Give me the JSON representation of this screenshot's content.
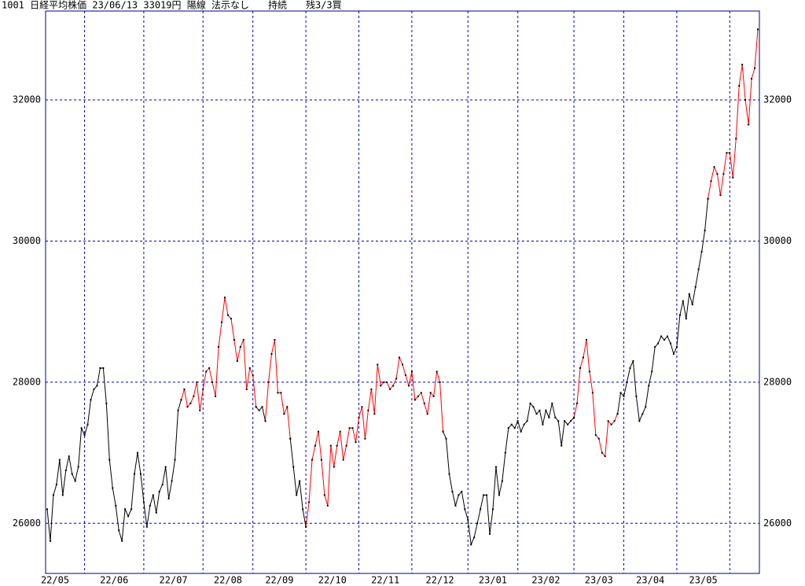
{
  "chart_data": {
    "type": "line",
    "title": "1001 日経平均株価 23/06/13 33019円 陽線 法示なし　　持続　　残3/3買",
    "xlim": [
      0,
      228
    ],
    "xticks": [
      {
        "value": 0,
        "label": "22/05"
      },
      {
        "value": 12,
        "label": "22/06"
      },
      {
        "value": 31,
        "label": "22/07"
      },
      {
        "value": 50,
        "label": "22/08"
      },
      {
        "value": 66,
        "label": "22/09"
      },
      {
        "value": 83,
        "label": "22/10"
      },
      {
        "value": 100,
        "label": "22/11"
      },
      {
        "value": 117,
        "label": "22/12"
      },
      {
        "value": 135,
        "label": "23/01"
      },
      {
        "value": 151,
        "label": "23/02"
      },
      {
        "value": 169,
        "label": "23/03"
      },
      {
        "value": 185,
        "label": "23/04"
      },
      {
        "value": 202,
        "label": "23/05"
      },
      {
        "value": 219,
        "label": null
      }
    ],
    "ylim": [
      25290,
      33260
    ],
    "yticks": [
      26000,
      28000,
      30000,
      32000
    ],
    "grid": true,
    "series": [
      {
        "color": "#000000",
        "values": [
          26200,
          25750,
          26400,
          26550,
          26900,
          26400,
          26750,
          26950,
          26700,
          26600,
          26800,
          27350,
          27250,
          27400,
          27750,
          27900,
          27950,
          28200,
          28200,
          27700,
          26900,
          26500,
          26250,
          25900,
          25750,
          26200,
          26100,
          26200,
          26700,
          27000,
          26700,
          26300,
          25950,
          26250,
          26400,
          26150,
          26450,
          26550,
          26800,
          26350,
          26600,
          26900,
          27600,
          27750,
          null,
          null,
          null,
          null,
          null,
          null,
          null,
          null,
          null,
          null,
          null,
          null,
          null,
          null,
          null,
          null,
          null,
          null,
          null,
          null,
          null,
          null,
          null,
          27650,
          27600,
          27650,
          27450,
          null,
          null,
          null,
          null,
          null,
          null,
          null,
          27200,
          26800,
          26400,
          26600,
          26200,
          25950,
          null,
          null,
          null,
          null,
          null,
          null,
          null,
          null,
          null,
          null,
          null,
          null,
          null,
          null,
          null,
          null,
          null,
          null,
          null,
          null,
          null,
          null,
          null,
          null,
          null,
          null,
          null,
          null,
          null,
          null,
          null,
          null,
          null,
          null,
          null,
          null,
          null,
          null,
          null,
          null,
          null,
          null,
          null,
          27300,
          27200,
          26700,
          26450,
          26250,
          26400,
          26450,
          26200,
          26050,
          25700,
          25800,
          26000,
          26200,
          26400,
          26400,
          25850,
          26200,
          26800,
          26400,
          26600,
          27000,
          27350,
          27400,
          27350,
          27450,
          27300,
          27400,
          27450,
          27700,
          27650,
          27550,
          27600,
          27400,
          27600,
          27500,
          27700,
          27500,
          27450,
          27100,
          27450,
          27400,
          27450,
          27500,
          null,
          null,
          null,
          null,
          null,
          null,
          null,
          null,
          null,
          null,
          null,
          null,
          null,
          27550,
          27850,
          27800,
          28000,
          28200,
          28300,
          27800,
          27450,
          27550,
          27650,
          27950,
          28150,
          28500,
          28550,
          28650,
          28600,
          28650,
          28550,
          28400,
          28500,
          28950,
          29150,
          28900,
          29250,
          29100,
          29350,
          29600,
          29850,
          30150,
          30600,
          null,
          null,
          null,
          null,
          null,
          null,
          null,
          null,
          null,
          null,
          null,
          null,
          null,
          null,
          null,
          null
        ]
      },
      {
        "color": "#ff0000",
        "values": [
          null,
          null,
          null,
          null,
          null,
          null,
          null,
          null,
          null,
          null,
          null,
          null,
          null,
          null,
          null,
          null,
          null,
          null,
          null,
          null,
          null,
          null,
          null,
          null,
          null,
          null,
          null,
          null,
          null,
          null,
          null,
          null,
          null,
          null,
          null,
          null,
          null,
          null,
          null,
          null,
          null,
          null,
          null,
          27750,
          27900,
          27650,
          27700,
          27800,
          28000,
          27600,
          27900,
          28150,
          28200,
          28000,
          27800,
          28500,
          28850,
          29200,
          28950,
          28900,
          28600,
          28300,
          28500,
          28600,
          27900,
          28200,
          28100,
          27650,
          null,
          null,
          27450,
          28000,
          28400,
          28600,
          27850,
          27850,
          27550,
          27650,
          27200,
          null,
          null,
          null,
          null,
          25950,
          26300,
          26900,
          27100,
          27300,
          26900,
          26400,
          26250,
          27100,
          26800,
          27100,
          27300,
          26900,
          27100,
          27350,
          27350,
          27150,
          27500,
          27650,
          27200,
          27600,
          27900,
          27550,
          28250,
          27950,
          28000,
          28000,
          27900,
          27950,
          28050,
          28350,
          28250,
          28100,
          27950,
          28150,
          27750,
          27800,
          27850,
          27700,
          27550,
          27850,
          27800,
          28150,
          28000,
          27300,
          null,
          null,
          null,
          null,
          null,
          null,
          null,
          null,
          null,
          null,
          null,
          null,
          null,
          null,
          null,
          null,
          null,
          null,
          null,
          null,
          null,
          null,
          null,
          null,
          null,
          null,
          null,
          null,
          null,
          null,
          null,
          null,
          null,
          null,
          null,
          null,
          null,
          null,
          null,
          null,
          null,
          27500,
          27700,
          28200,
          28350,
          28600,
          28150,
          27850,
          27250,
          27200,
          27000,
          26950,
          27450,
          27400,
          27450,
          27550,
          null,
          null,
          null,
          null,
          null,
          null,
          null,
          null,
          null,
          null,
          null,
          null,
          null,
          null,
          null,
          null,
          null,
          null,
          null,
          null,
          null,
          null,
          null,
          null,
          null,
          null,
          null,
          null,
          30600,
          30850,
          31050,
          30950,
          30650,
          30950,
          31250,
          31250,
          30900,
          31450,
          32200,
          32500,
          32000,
          31650,
          32300,
          32450,
          33000
        ]
      }
    ]
  }
}
